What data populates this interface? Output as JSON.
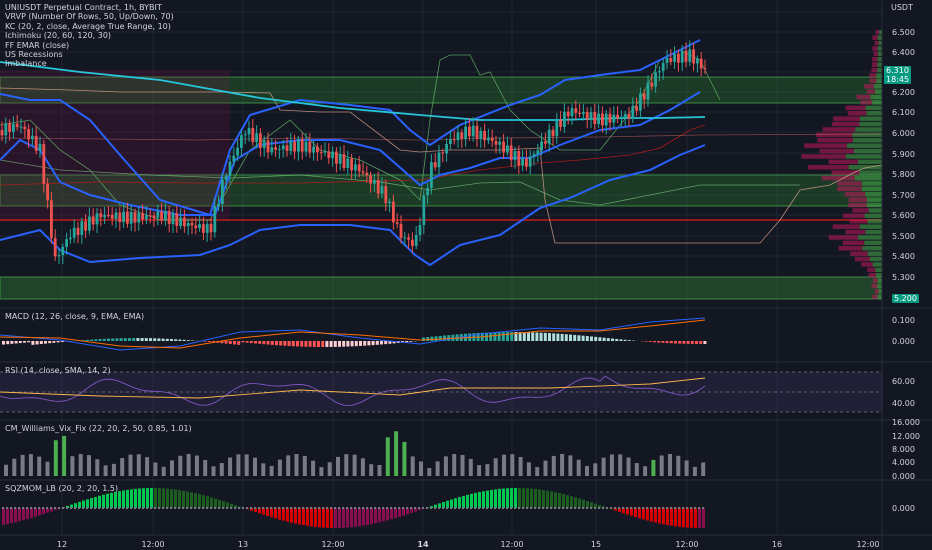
{
  "header": {
    "symbol_line": "UNIUSDT Perpetual Contract, 1h, BYBIT",
    "indicators": [
      "VRVP (Number Of Rows, 50, Up/Down, 70)",
      "KC (20, 2, close, Average True Range, 10)",
      "Ichimoku (20, 60, 120, 30)",
      "FF EMAR (close)",
      "US Recessions",
      "Imbalance"
    ]
  },
  "currency": "USDT",
  "price_axis": [
    "6.500",
    "6.400",
    "6.200",
    "6.100",
    "6.000",
    "5.900",
    "5.800",
    "5.700",
    "5.600",
    "5.500",
    "5.400",
    "5.300"
  ],
  "last_price": {
    "value": "6.310",
    "countdown": "18:45",
    "color": "#089981"
  },
  "low_tag": {
    "value": "5.200",
    "color": "#089981"
  },
  "panels": {
    "macd": {
      "title": "MACD (12, 26, close, 9, EMA, EMA)",
      "ticks": [
        "0.100",
        "0.000"
      ]
    },
    "rsi": {
      "title": "RSI (14, close, SMA, 14, 2)",
      "ticks": [
        "60.00",
        "40.00"
      ]
    },
    "vix": {
      "title": "CM_Williams_Vix_Fix (22, 20, 2, 50, 0.85, 1.01)",
      "ticks": [
        "16.000",
        "12.000",
        "8.000",
        "4.000",
        "0.000"
      ]
    },
    "sqz": {
      "title": "SQZMOM_LB (20, 2, 20, 1.5)",
      "ticks": [
        "0.000"
      ]
    }
  },
  "time_axis": [
    "12",
    "12:00",
    "13",
    "12:00",
    "14",
    "12:00",
    "15",
    "12:00",
    "16",
    "12:00"
  ],
  "colors": {
    "up": "#26a69a",
    "down": "#ef5350",
    "kc": "#2962ff",
    "zone": "#4caf50",
    "bg": "#131722"
  }
}
